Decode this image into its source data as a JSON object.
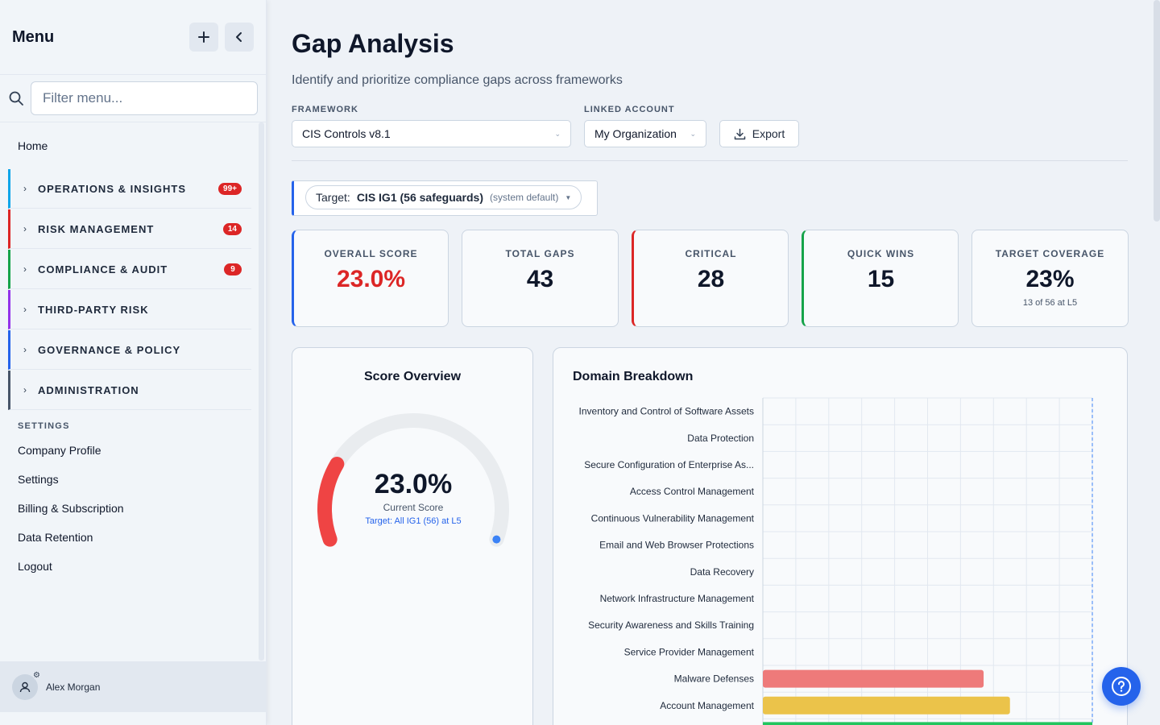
{
  "sidebar": {
    "title": "Menu",
    "add_icon": "plus-icon",
    "collapse_icon": "chevron-left-icon",
    "filter_placeholder": "Filter menu...",
    "home": "Home",
    "groups": [
      {
        "label": "OPERATIONS & INSIGHTS",
        "badge": "99+",
        "color": "#0ea5e9"
      },
      {
        "label": "RISK MANAGEMENT",
        "badge": "14",
        "color": "#dc2626"
      },
      {
        "label": "COMPLIANCE & AUDIT",
        "badge": "9",
        "color": "#16a34a"
      },
      {
        "label": "THIRD-PARTY RISK",
        "badge": "",
        "color": "#9333ea"
      },
      {
        "label": "GOVERNANCE & POLICY",
        "badge": "",
        "color": "#2563eb"
      },
      {
        "label": "ADMINISTRATION",
        "badge": "",
        "color": "#475569"
      }
    ],
    "settings_header": "SETTINGS",
    "settings_items": [
      "Company Profile",
      "Settings",
      "Billing & Subscription",
      "Data Retention",
      "Logout"
    ],
    "user_name": "Alex Morgan"
  },
  "header": {
    "title": "Gap Analysis",
    "subtitle": "Identify and prioritize compliance gaps across frameworks"
  },
  "filters": {
    "framework_label": "FRAMEWORK",
    "framework_value": "CIS Controls v8.1",
    "account_label": "LINKED ACCOUNT",
    "account_value": "My Organization",
    "export_label": "Export"
  },
  "target": {
    "label": "Target:",
    "value": "CIS IG1 (56 safeguards)",
    "note": "(system default)"
  },
  "cards": [
    {
      "label": "OVERALL SCORE",
      "value": "23.0%",
      "sub": "",
      "value_color": "#dc2626",
      "accent": "#2563eb"
    },
    {
      "label": "TOTAL GAPS",
      "value": "43",
      "sub": "",
      "value_color": "#0f172a",
      "accent": ""
    },
    {
      "label": "CRITICAL",
      "value": "28",
      "sub": "",
      "value_color": "#0f172a",
      "accent": "#dc2626"
    },
    {
      "label": "QUICK WINS",
      "value": "15",
      "sub": "",
      "value_color": "#0f172a",
      "accent": "#16a34a"
    },
    {
      "label": "TARGET COVERAGE",
      "value": "23%",
      "sub": "13 of 56 at L5",
      "value_color": "#0f172a",
      "accent": ""
    }
  ],
  "score_overview": {
    "title": "Score Overview",
    "value": "23.0%",
    "value_label": "Current Score",
    "target_note": "Target: All IG1 (56) at L5",
    "score": 23.0,
    "max": 100,
    "colors": {
      "arc": "#ef4444",
      "track": "#e9ecef",
      "target_dot": "#3b82f6"
    }
  },
  "chart_data": {
    "type": "bar",
    "orientation": "horizontal",
    "title": "Domain Breakdown",
    "categories": [
      "Inventory and Control of Software Assets",
      "Data Protection",
      "Secure Configuration of Enterprise As...",
      "Access Control Management",
      "Continuous Vulnerability Management",
      "Email and Web Browser Protections",
      "Data Recovery",
      "Network Infrastructure Management",
      "Security Awareness and Skills Training",
      "Service Provider Management",
      "Malware Defenses",
      "Account Management"
    ],
    "values": [
      0,
      0,
      0,
      0,
      0,
      0,
      0,
      0,
      0,
      0,
      67,
      75
    ],
    "bar_colors": {
      "Malware Defenses": "#ee7a7a",
      "Account Management": "#ebc34a"
    },
    "xlim": [
      0,
      100
    ],
    "grid": true,
    "target_line": 100
  },
  "help_icon": "question-circle-icon"
}
